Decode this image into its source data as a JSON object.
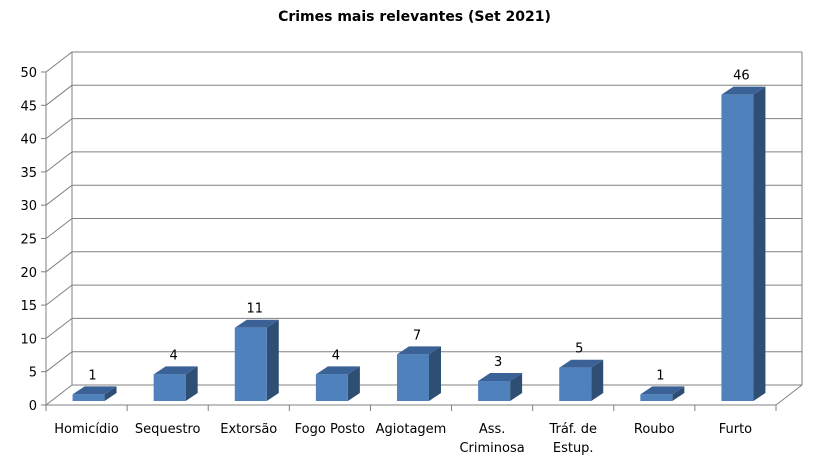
{
  "chart_data": {
    "type": "bar",
    "title": "Crimes mais relevantes (Set 2021)",
    "xlabel": "",
    "ylabel": "",
    "categories": [
      [
        "Homicídio"
      ],
      [
        "Sequestro"
      ],
      [
        "Extorsão"
      ],
      [
        "Fogo Posto"
      ],
      [
        "Agiotagem"
      ],
      [
        "Ass.",
        "Criminosa"
      ],
      [
        "Tráf. de",
        "Estup."
      ],
      [
        "Roubo"
      ],
      [
        "Furto"
      ]
    ],
    "values": [
      1,
      4,
      11,
      4,
      7,
      3,
      5,
      1,
      46
    ],
    "ylim": [
      0,
      50
    ],
    "yticks": [
      0,
      5,
      10,
      15,
      20,
      25,
      30,
      35,
      40,
      45,
      50
    ],
    "grid": true,
    "three_d": true,
    "colors": {
      "bar_front": "#4F81BD",
      "bar_side": "#2F4E74",
      "bar_top": "#3B6296",
      "gridline": "#808080"
    }
  }
}
